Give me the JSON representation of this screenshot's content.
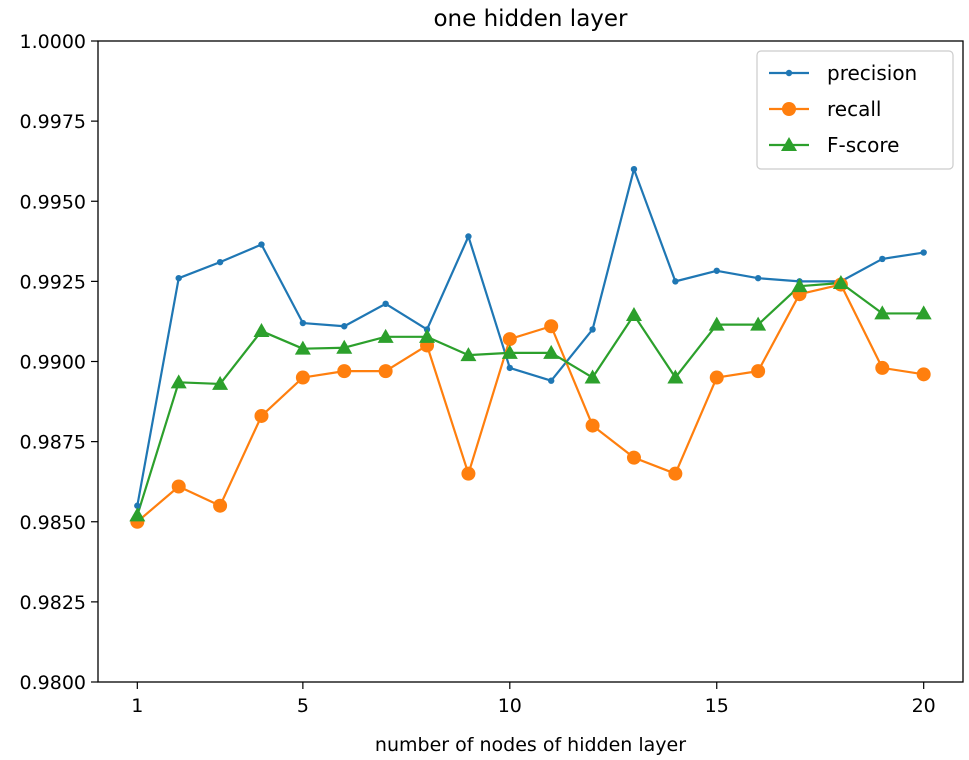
{
  "chart_data": {
    "type": "line",
    "title": "one hidden layer",
    "xlabel": "number of nodes of hidden layer",
    "ylabel": "",
    "x": [
      1,
      2,
      3,
      4,
      5,
      6,
      7,
      8,
      9,
      10,
      11,
      12,
      13,
      14,
      15,
      16,
      17,
      18,
      19,
      20
    ],
    "xlim": [
      0.05,
      20.95
    ],
    "ylim": [
      0.98,
      1.0
    ],
    "x_ticks": [
      1,
      5,
      10,
      15,
      20
    ],
    "x_tick_labels": [
      "1",
      "5",
      "10",
      "15",
      "20"
    ],
    "y_ticks": [
      0.98,
      0.9825,
      0.985,
      0.9875,
      0.99,
      0.9925,
      0.995,
      0.9975,
      1.0
    ],
    "y_tick_labels": [
      "0.9800",
      "0.9825",
      "0.9850",
      "0.9875",
      "0.9900",
      "0.9925",
      "0.9950",
      "0.9975",
      "1.0000"
    ],
    "grid": false,
    "legend_position": "top-right",
    "series": [
      {
        "name": "precision",
        "color": "#1f77b4",
        "marker": "point",
        "values": [
          0.9855,
          0.9926,
          0.9931,
          0.99365,
          0.9912,
          0.9911,
          0.9918,
          0.991,
          0.9939,
          0.9898,
          0.9894,
          0.991,
          0.996,
          0.9925,
          0.99283,
          0.9926,
          0.9925,
          0.9925,
          0.9932,
          0.9934
        ]
      },
      {
        "name": "recall",
        "color": "#ff7f0e",
        "marker": "circle",
        "values": [
          0.985,
          0.9861,
          0.9855,
          0.9883,
          0.9895,
          0.9897,
          0.9897,
          0.9905,
          0.9865,
          0.9907,
          0.9911,
          0.988,
          0.987,
          0.9865,
          0.9895,
          0.9897,
          0.9921,
          0.9924,
          0.9898,
          0.9896
        ]
      },
      {
        "name": "F-score",
        "color": "#2ca02c",
        "marker": "triangle",
        "values": [
          0.9852,
          0.98935,
          0.9893,
          0.99095,
          0.9904,
          0.99043,
          0.99077,
          0.99077,
          0.9902,
          0.99027,
          0.99027,
          0.9895,
          0.99145,
          0.9895,
          0.99115,
          0.99115,
          0.99235,
          0.99245,
          0.9915,
          0.9915
        ]
      }
    ]
  }
}
